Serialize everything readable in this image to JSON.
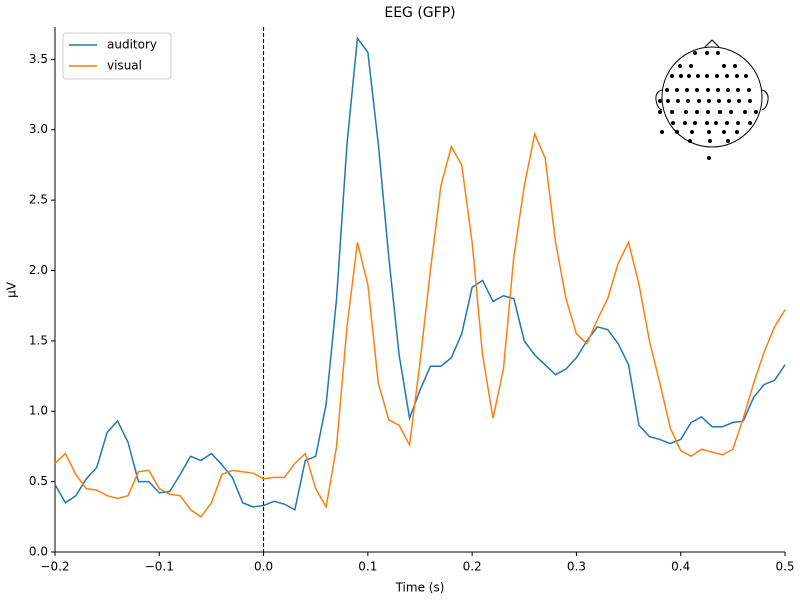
{
  "chart_data": {
    "type": "line",
    "title": "EEG (GFP)",
    "xlabel": "Time (s)",
    "ylabel": "µV",
    "x": [
      -0.2,
      -0.19,
      -0.18,
      -0.17,
      -0.16,
      -0.15,
      -0.14,
      -0.13,
      -0.12,
      -0.11,
      -0.1,
      -0.09,
      -0.08,
      -0.07,
      -0.06,
      -0.05,
      -0.04,
      -0.03,
      -0.02,
      -0.01,
      0,
      0.01,
      0.02,
      0.03,
      0.04,
      0.05,
      0.06,
      0.07,
      0.08,
      0.09,
      0.1,
      0.11,
      0.12,
      0.13,
      0.14,
      0.15,
      0.16,
      0.17,
      0.18,
      0.19,
      0.2,
      0.21,
      0.22,
      0.23,
      0.24,
      0.25,
      0.26,
      0.27,
      0.28,
      0.29,
      0.3,
      0.31,
      0.32,
      0.33,
      0.34,
      0.35,
      0.36,
      0.37,
      0.38,
      0.39,
      0.4,
      0.41,
      0.42,
      0.43,
      0.44,
      0.45,
      0.46,
      0.47,
      0.48,
      0.49,
      0.5
    ],
    "series": [
      {
        "name": "auditory",
        "color": "#1f77b4",
        "values": [
          0.48,
          0.35,
          0.4,
          0.52,
          0.6,
          0.85,
          0.93,
          0.78,
          0.5,
          0.5,
          0.42,
          0.43,
          0.55,
          0.68,
          0.65,
          0.7,
          0.62,
          0.53,
          0.35,
          0.32,
          0.33,
          0.36,
          0.34,
          0.3,
          0.65,
          0.68,
          1.05,
          1.8,
          2.9,
          3.65,
          3.55,
          2.9,
          2.1,
          1.4,
          0.95,
          1.15,
          1.32,
          1.32,
          1.38,
          1.55,
          1.88,
          1.93,
          1.78,
          1.82,
          1.8,
          1.5,
          1.4,
          1.33,
          1.26,
          1.3,
          1.38,
          1.5,
          1.6,
          1.58,
          1.48,
          1.33,
          0.9,
          0.82,
          0.8,
          0.77,
          0.8,
          0.92,
          0.96,
          0.89,
          0.89,
          0.92,
          0.93,
          1.1,
          1.19,
          1.22,
          1.33
        ]
      },
      {
        "name": "visual",
        "color": "#ff7f0e",
        "values": [
          0.63,
          0.7,
          0.55,
          0.45,
          0.44,
          0.4,
          0.38,
          0.4,
          0.57,
          0.58,
          0.45,
          0.41,
          0.4,
          0.3,
          0.25,
          0.35,
          0.55,
          0.58,
          0.57,
          0.56,
          0.52,
          0.53,
          0.53,
          0.63,
          0.7,
          0.45,
          0.32,
          0.75,
          1.6,
          2.2,
          1.9,
          1.2,
          0.94,
          0.9,
          0.76,
          1.35,
          2.0,
          2.6,
          2.88,
          2.75,
          2.2,
          1.4,
          0.95,
          1.3,
          2.1,
          2.6,
          2.97,
          2.8,
          2.2,
          1.8,
          1.55,
          1.48,
          1.65,
          1.8,
          2.05,
          2.2,
          1.9,
          1.5,
          1.2,
          0.88,
          0.72,
          0.68,
          0.73,
          0.71,
          0.69,
          0.73,
          0.95,
          1.2,
          1.42,
          1.6,
          1.72
        ]
      }
    ],
    "xlim": [
      -0.2,
      0.5
    ],
    "ylim": [
      0,
      3.73
    ],
    "xticks": [
      {
        "value": -0.2,
        "label": "−0.2"
      },
      {
        "value": -0.1,
        "label": "−0.1"
      },
      {
        "value": 0,
        "label": "0.0"
      },
      {
        "value": 0.1,
        "label": "0.1"
      },
      {
        "value": 0.2,
        "label": "0.2"
      },
      {
        "value": 0.3,
        "label": "0.3"
      },
      {
        "value": 0.4,
        "label": "0.4"
      },
      {
        "value": 0.5,
        "label": "0.5"
      }
    ],
    "yticks": [
      {
        "value": 0,
        "label": "0.0"
      },
      {
        "value": 0.5,
        "label": "0.5"
      },
      {
        "value": 1,
        "label": "1.0"
      },
      {
        "value": 1.5,
        "label": "1.5"
      },
      {
        "value": 2,
        "label": "2.0"
      },
      {
        "value": 2.5,
        "label": "2.5"
      },
      {
        "value": 3,
        "label": "3.0"
      },
      {
        "value": 3.5,
        "label": "3.5"
      }
    ],
    "vline": 0,
    "legend": "upper left"
  }
}
